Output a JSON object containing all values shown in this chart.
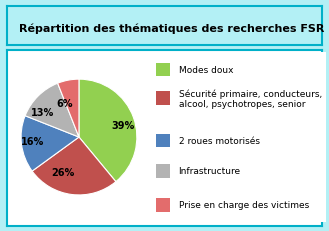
{
  "title": "Répartition des thématiques des recherches FSR",
  "slices": [
    39,
    26,
    16,
    13,
    6
  ],
  "pct_labels": [
    "39%",
    "26%",
    "16%",
    "13%",
    "6%"
  ],
  "colors": [
    "#92d050",
    "#c0504d",
    "#4f81bd",
    "#b3b3b3",
    "#e36c6c"
  ],
  "legend_labels": [
    "Modes doux",
    "Sécurité primaire, conducteurs,\nalcool, psychotropes, senior",
    "2 roues motorisés",
    "Infrastructure",
    "Prise en charge des victimes"
  ],
  "bg_color": "#b3f0f5",
  "chart_bg": "#ffffff",
  "border_color": "#00b0c8",
  "startangle": 90,
  "title_fontsize": 8,
  "label_fontsize": 7,
  "legend_fontsize": 6.5
}
